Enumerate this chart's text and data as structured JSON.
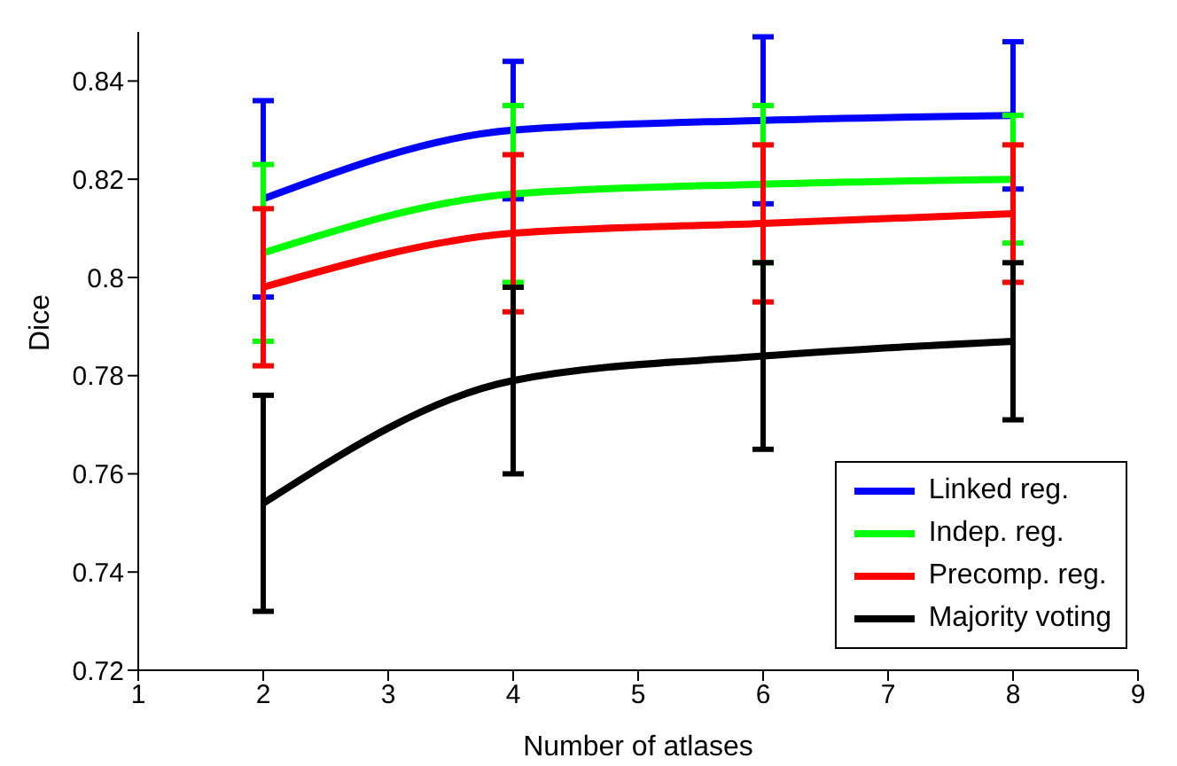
{
  "chart_data": {
    "type": "line",
    "xlabel": "Number of atlases",
    "ylabel": "Dice",
    "x": [
      2,
      4,
      6,
      8
    ],
    "series": [
      {
        "name": "Linked reg.",
        "color": "#0000ff",
        "values": [
          0.816,
          0.83,
          0.832,
          0.833
        ],
        "errors": [
          0.02,
          0.014,
          0.017,
          0.015
        ]
      },
      {
        "name": "Indep. reg.",
        "color": "#00ff00",
        "values": [
          0.805,
          0.817,
          0.819,
          0.82
        ],
        "errors": [
          0.018,
          0.018,
          0.016,
          0.013
        ]
      },
      {
        "name": "Precomp. reg.",
        "color": "#ff0000",
        "values": [
          0.798,
          0.809,
          0.811,
          0.813
        ],
        "errors": [
          0.016,
          0.016,
          0.016,
          0.014
        ]
      },
      {
        "name": "Majority voting",
        "color": "#000000",
        "values": [
          0.754,
          0.779,
          0.784,
          0.787
        ],
        "errors": [
          0.022,
          0.019,
          0.019,
          0.016
        ]
      }
    ],
    "xlim": [
      1,
      9
    ],
    "xticks": [
      1,
      2,
      3,
      4,
      5,
      6,
      7,
      8,
      9
    ],
    "ylim": [
      0.72,
      0.85
    ],
    "yticks": [
      0.72,
      0.74,
      0.76,
      0.78,
      0.8,
      0.82,
      0.84
    ],
    "legend": "bottom right",
    "marker": "none",
    "line_style": "solid"
  }
}
